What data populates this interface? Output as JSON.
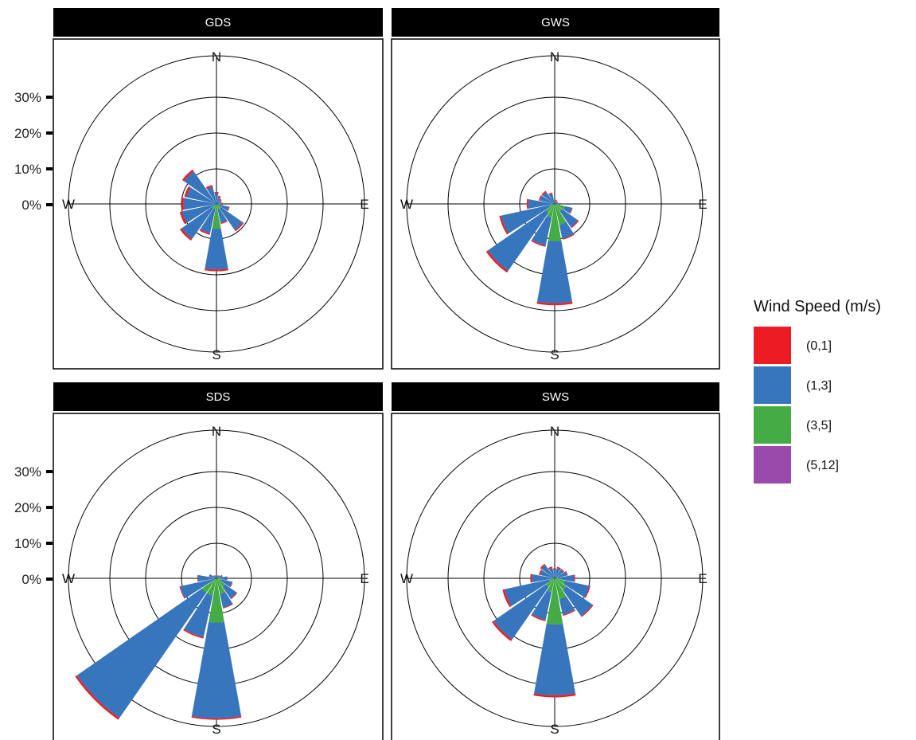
{
  "chart_data": {
    "type": "windrose",
    "legend": {
      "title": "Wind Speed (m/s)",
      "placement": "right",
      "items": [
        {
          "label": "(0,1]",
          "color": "#ED1C24"
        },
        {
          "label": "(1,3]",
          "color": "#3776BC"
        },
        {
          "label": "(3,5]",
          "color": "#45AC45"
        },
        {
          "label": "(5,12]",
          "color": "#9A4AAA"
        }
      ]
    },
    "radial_axis": {
      "ticks": [
        0,
        10,
        20,
        30
      ],
      "tick_labels": [
        "0%",
        "10%",
        "20%",
        "30%"
      ],
      "rings": [
        10,
        20,
        30,
        40
      ],
      "max": 40
    },
    "compass": {
      "N": "N",
      "E": "E",
      "S": "S",
      "W": "W"
    },
    "bins": [
      "(0,1]",
      "(1,3]",
      "(3,5]",
      "(5,12]"
    ],
    "panels": [
      {
        "name": "GDS",
        "sectors": [
          {
            "dir": 0,
            "values": [
              0.4,
              3.0,
              0.0,
              0
            ]
          },
          {
            "dir": 22.5,
            "values": [
              0.4,
              2.0,
              0.0,
              0
            ]
          },
          {
            "dir": 45,
            "values": [
              0.3,
              1.5,
              0.0,
              0
            ]
          },
          {
            "dir": 67.5,
            "values": [
              0.3,
              1.2,
              0.0,
              0
            ]
          },
          {
            "dir": 90,
            "values": [
              0.3,
              1.5,
              0.0,
              0
            ]
          },
          {
            "dir": 112.5,
            "values": [
              0.3,
              3.0,
              0.5,
              0
            ]
          },
          {
            "dir": 135,
            "values": [
              0.4,
              7.5,
              1.5,
              0
            ]
          },
          {
            "dir": 157.5,
            "values": [
              0.3,
              4.0,
              1.5,
              0
            ]
          },
          {
            "dir": 180,
            "values": [
              0.5,
              11.5,
              7.0,
              0
            ]
          },
          {
            "dir": 202.5,
            "values": [
              0.4,
              7.0,
              1.5,
              0
            ]
          },
          {
            "dir": 225,
            "values": [
              0.6,
              10.5,
              1.5,
              0
            ]
          },
          {
            "dir": 247.5,
            "values": [
              0.6,
              9.5,
              0.5,
              0
            ]
          },
          {
            "dir": 270,
            "values": [
              0.6,
              9.0,
              0.3,
              0
            ]
          },
          {
            "dir": 292.5,
            "values": [
              0.6,
              8.5,
              0.2,
              0
            ]
          },
          {
            "dir": 315,
            "values": [
              0.6,
              11.0,
              0.2,
              0
            ]
          },
          {
            "dir": 337.5,
            "values": [
              0.5,
              5.0,
              0.0,
              0
            ]
          }
        ]
      },
      {
        "name": "GWS",
        "sectors": [
          {
            "dir": 0,
            "values": [
              0.3,
              0.9,
              0.0,
              0
            ]
          },
          {
            "dir": 22.5,
            "values": [
              0.3,
              0.9,
              0.0,
              0
            ]
          },
          {
            "dir": 45,
            "values": [
              0.2,
              0.8,
              0.0,
              0
            ]
          },
          {
            "dir": 67.5,
            "values": [
              0.2,
              0.8,
              0.0,
              0
            ]
          },
          {
            "dir": 90,
            "values": [
              0.2,
              0.9,
              0.5,
              0
            ]
          },
          {
            "dir": 112.5,
            "values": [
              0.2,
              2.0,
              3.0,
              0
            ]
          },
          {
            "dir": 135,
            "values": [
              0.3,
              5.5,
              2.5,
              0
            ]
          },
          {
            "dir": 157.5,
            "values": [
              0.3,
              4.0,
              6.0,
              0
            ]
          },
          {
            "dir": 180,
            "values": [
              0.6,
              17.5,
              10.5,
              0
            ]
          },
          {
            "dir": 202.5,
            "values": [
              0.4,
              8.0,
              4.0,
              0
            ]
          },
          {
            "dir": 225,
            "values": [
              0.6,
              20.0,
              3.0,
              0
            ]
          },
          {
            "dir": 247.5,
            "values": [
              0.5,
              14.0,
              1.5,
              0
            ]
          },
          {
            "dir": 270,
            "values": [
              0.4,
              7.0,
              0.5,
              0
            ]
          },
          {
            "dir": 292.5,
            "values": [
              0.4,
              4.0,
              0.2,
              0
            ]
          },
          {
            "dir": 315,
            "values": [
              0.4,
              4.0,
              0.1,
              0
            ]
          },
          {
            "dir": 337.5,
            "values": [
              0.3,
              3.0,
              0.0,
              0
            ]
          }
        ]
      },
      {
        "name": "SDS",
        "sectors": [
          {
            "dir": 0,
            "values": [
              0.1,
              0.8,
              0.0,
              0
            ]
          },
          {
            "dir": 22.5,
            "values": [
              0.1,
              0.8,
              0.0,
              0
            ]
          },
          {
            "dir": 45,
            "values": [
              0.1,
              1.0,
              0.0,
              0
            ]
          },
          {
            "dir": 67.5,
            "values": [
              0.1,
              1.5,
              0.2,
              0
            ]
          },
          {
            "dir": 90,
            "values": [
              0.1,
              2.0,
              1.0,
              0
            ]
          },
          {
            "dir": 112.5,
            "values": [
              0.2,
              3.0,
              1.5,
              0
            ]
          },
          {
            "dir": 135,
            "values": [
              0.2,
              4.0,
              3.0,
              0
            ]
          },
          {
            "dir": 157.5,
            "values": [
              0.2,
              4.0,
              4.5,
              0
            ]
          },
          {
            "dir": 180,
            "values": [
              0.4,
              27.0,
              12.5,
              0
            ]
          },
          {
            "dir": 202.5,
            "values": [
              0.4,
              12.0,
              5.0,
              0
            ]
          },
          {
            "dir": 225,
            "values": [
              0.6,
              43.0,
              5.0,
              0
            ]
          },
          {
            "dir": 247.5,
            "values": [
              0.2,
              10.0,
              0.5,
              0
            ]
          },
          {
            "dir": 270,
            "values": [
              0.2,
              5.0,
              0.2,
              0
            ]
          },
          {
            "dir": 292.5,
            "values": [
              0.1,
              2.0,
              0.1,
              0
            ]
          },
          {
            "dir": 315,
            "values": [
              0.1,
              1.0,
              0.0,
              0
            ]
          },
          {
            "dir": 337.5,
            "values": [
              0.1,
              0.8,
              0.0,
              0
            ]
          }
        ]
      },
      {
        "name": "SWS",
        "sectors": [
          {
            "dir": 0,
            "values": [
              0.3,
              2.5,
              0.0,
              0
            ]
          },
          {
            "dir": 22.5,
            "values": [
              0.3,
              3.0,
              0.0,
              0
            ]
          },
          {
            "dir": 45,
            "values": [
              0.3,
              3.0,
              0.0,
              0
            ]
          },
          {
            "dir": 67.5,
            "values": [
              0.3,
              3.5,
              0.0,
              0
            ]
          },
          {
            "dir": 90,
            "values": [
              0.3,
              4.5,
              1.0,
              0
            ]
          },
          {
            "dir": 112.5,
            "values": [
              0.3,
              7.0,
              3.0,
              0
            ]
          },
          {
            "dir": 135,
            "values": [
              0.3,
              9.0,
              4.0,
              0
            ]
          },
          {
            "dir": 157.5,
            "values": [
              0.3,
              4.5,
              6.0,
              0
            ]
          },
          {
            "dir": 180,
            "values": [
              0.6,
              20.0,
              13.0,
              0
            ]
          },
          {
            "dir": 202.5,
            "values": [
              0.4,
              8.0,
              4.0,
              0
            ]
          },
          {
            "dir": 225,
            "values": [
              0.6,
              18.0,
              3.0,
              0
            ]
          },
          {
            "dir": 247.5,
            "values": [
              0.6,
              13.0,
              1.5,
              0
            ]
          },
          {
            "dir": 270,
            "values": [
              0.4,
              6.0,
              0.5,
              0
            ]
          },
          {
            "dir": 292.5,
            "values": [
              0.4,
              4.0,
              0.2,
              0
            ]
          },
          {
            "dir": 315,
            "values": [
              0.4,
              4.5,
              0.1,
              0
            ]
          },
          {
            "dir": 337.5,
            "values": [
              0.4,
              3.0,
              0.0,
              0
            ]
          }
        ]
      }
    ]
  }
}
